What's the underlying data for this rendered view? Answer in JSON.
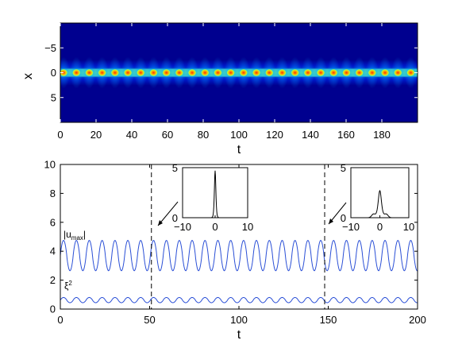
{
  "chart_data": [
    {
      "type": "heatmap",
      "title": "",
      "xlabel": "t",
      "ylabel": "x",
      "xlim": [
        0,
        200
      ],
      "ylim_reversed": [
        -10,
        10
      ],
      "x_ticks": [
        "0",
        "20",
        "40",
        "60",
        "80",
        "100",
        "120",
        "140",
        "160",
        "180"
      ],
      "y_ticks": [
        "−5",
        "0",
        "5"
      ],
      "x_tick_values": [
        0,
        20,
        40,
        60,
        80,
        100,
        120,
        140,
        160,
        180
      ],
      "y_tick_values": [
        -5,
        0,
        5
      ],
      "colormap": "jet",
      "peak_period": 7.2,
      "peak_count": 28,
      "colors": {
        "background": "#00008f",
        "peak": "#ff3c00",
        "band": "#00c8ff"
      }
    },
    {
      "type": "line",
      "title": "",
      "xlabel": "t",
      "ylabel": "",
      "xlim": [
        0,
        200
      ],
      "ylim": [
        0,
        10
      ],
      "x_ticks": [
        "0",
        "50",
        "100",
        "150",
        "200"
      ],
      "y_ticks": [
        "0",
        "2",
        "4",
        "6",
        "8",
        "10"
      ],
      "x_tick_values": [
        0,
        50,
        100,
        150,
        200
      ],
      "y_tick_values": [
        0,
        2,
        4,
        6,
        8,
        10
      ],
      "series": [
        {
          "name": "|u_max|",
          "mean": 3.7,
          "amplitude": 1.05,
          "period": 7.2,
          "min": 2.65,
          "max": 4.75,
          "color": "#2a4fd6"
        },
        {
          "name": "ξ²",
          "mean": 0.62,
          "amplitude": 0.18,
          "period": 7.2,
          "min": 0.44,
          "max": 0.8,
          "color": "#2a4fd6"
        }
      ],
      "series_labels": {
        "umax_main": "|u",
        "umax_sub": "max",
        "umax_end": "|",
        "xi_main": "ξ",
        "xi_sup": "2"
      },
      "markers": [
        {
          "t": 51,
          "style": "dashed"
        },
        {
          "t": 148,
          "style": "dashed"
        }
      ],
      "insets": [
        {
          "at_t": 51,
          "type": "line",
          "xlim": [
            -10,
            10
          ],
          "ylim": [
            0,
            5
          ],
          "x_ticks": [
            "−10",
            "0",
            "10"
          ],
          "y_ticks": [
            "0",
            "5"
          ],
          "peak_height": 4.7,
          "peak_width": 0.3
        },
        {
          "at_t": 148,
          "type": "line",
          "xlim": [
            -10,
            10
          ],
          "ylim": [
            0,
            5
          ],
          "x_ticks": [
            "−10",
            "0",
            "10"
          ],
          "y_ticks": [
            "0",
            "5"
          ],
          "peak_height": 2.7,
          "peak_width": 0.75
        }
      ]
    }
  ]
}
